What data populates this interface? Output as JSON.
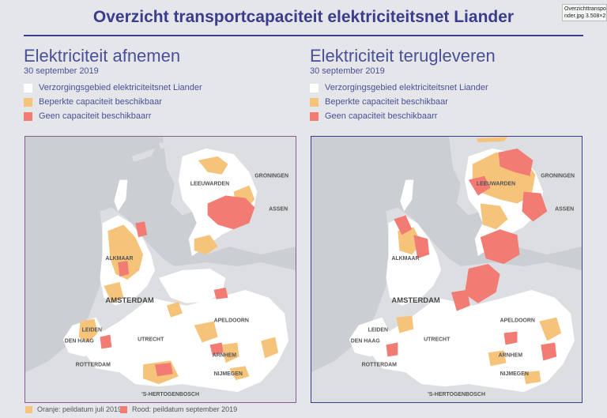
{
  "title": "Overzicht transportcapaciteit elektriciteitsnet Liander",
  "file_label": {
    "line1": "Overzichttransporto",
    "line2": "nder.jpg 3.508×2.48"
  },
  "colors": {
    "white_area": "#ffffff",
    "orange": "#f6c37a",
    "red": "#f27b74",
    "background": "#e4e6ea",
    "water": "#cbced3"
  },
  "panels": [
    {
      "title": "Elektriciteit afnemen",
      "date": "30 september 2019",
      "legend": [
        {
          "label": "Verzorgingsgebied elektriciteitsnet Liander",
          "color": "#ffffff"
        },
        {
          "label": "Beperkte capaciteit beschikbaar",
          "color": "#f6c37a"
        },
        {
          "label": "Geen capaciteit beschikbaarr",
          "color": "#f27b74"
        }
      ]
    },
    {
      "title": "Elektriciteit terugleveren",
      "date": "30 september 2019",
      "legend": [
        {
          "label": "Verzorgingsgebied elektriciteitsnet Liander",
          "color": "#ffffff"
        },
        {
          "label": "Beperkte capaciteit beschikbaar",
          "color": "#f6c37a"
        },
        {
          "label": "Geen capaciteit beschikbaarr",
          "color": "#f27b74"
        }
      ]
    }
  ],
  "cities": {
    "groningen": "GRONINGEN",
    "leeuwarden": "LEEUWARDEN",
    "assen": "ASSEN",
    "alkmaar": "ALKMAAR",
    "amsterdam": "AMSTERDAM",
    "leiden": "LEIDEN",
    "den_haag": "DEN HAAG",
    "utrecht": "UTRECHT",
    "rotterdam": "ROTTERDAM",
    "apeldoorn": "APELDOORN",
    "arnhem": "ARNHEM",
    "nijmegen": "NIJMEGEN",
    "den_bosch": "'S-HERTOGENBOSCH"
  },
  "footer": {
    "orange_label": "Oranje: peildatum juli 2019",
    "red_label": "Rood: peildatum september 2019"
  }
}
